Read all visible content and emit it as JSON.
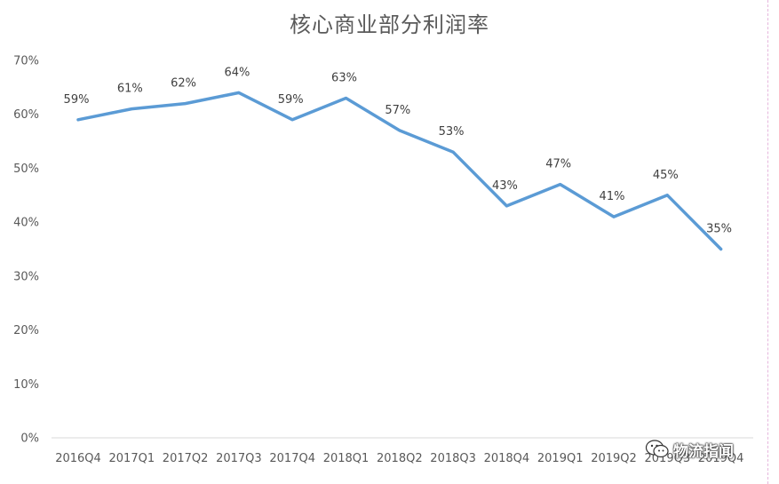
{
  "chart_data": {
    "type": "line",
    "title": "核心商业部分利润率",
    "categories": [
      "2016Q4",
      "2017Q1",
      "2017Q2",
      "2017Q3",
      "2017Q4",
      "2018Q1",
      "2018Q2",
      "2018Q3",
      "2018Q4",
      "2019Q1",
      "2019Q2",
      "2019Q3",
      "2019Q4"
    ],
    "series": [
      {
        "values": [
          59,
          61,
          62,
          64,
          59,
          63,
          57,
          53,
          43,
          47,
          41,
          45,
          35
        ],
        "labels": [
          "59%",
          "61%",
          "62%",
          "64%",
          "59%",
          "63%",
          "57%",
          "53%",
          "43%",
          "47%",
          "41%",
          "45%",
          "35%"
        ]
      }
    ],
    "ylim": [
      0,
      70
    ],
    "yticks": [
      0,
      10,
      20,
      30,
      40,
      50,
      60,
      70
    ],
    "ytick_labels": [
      "0%",
      "10%",
      "20%",
      "30%",
      "40%",
      "50%",
      "60%",
      "70%"
    ],
    "xlabel": "",
    "ylabel": "",
    "grid": false,
    "legend": "none",
    "line_color": "#5b9bd5",
    "axis_color": "#d9d9d9"
  },
  "watermark": {
    "text": "物流指闻",
    "icon": "wechat-icon"
  }
}
